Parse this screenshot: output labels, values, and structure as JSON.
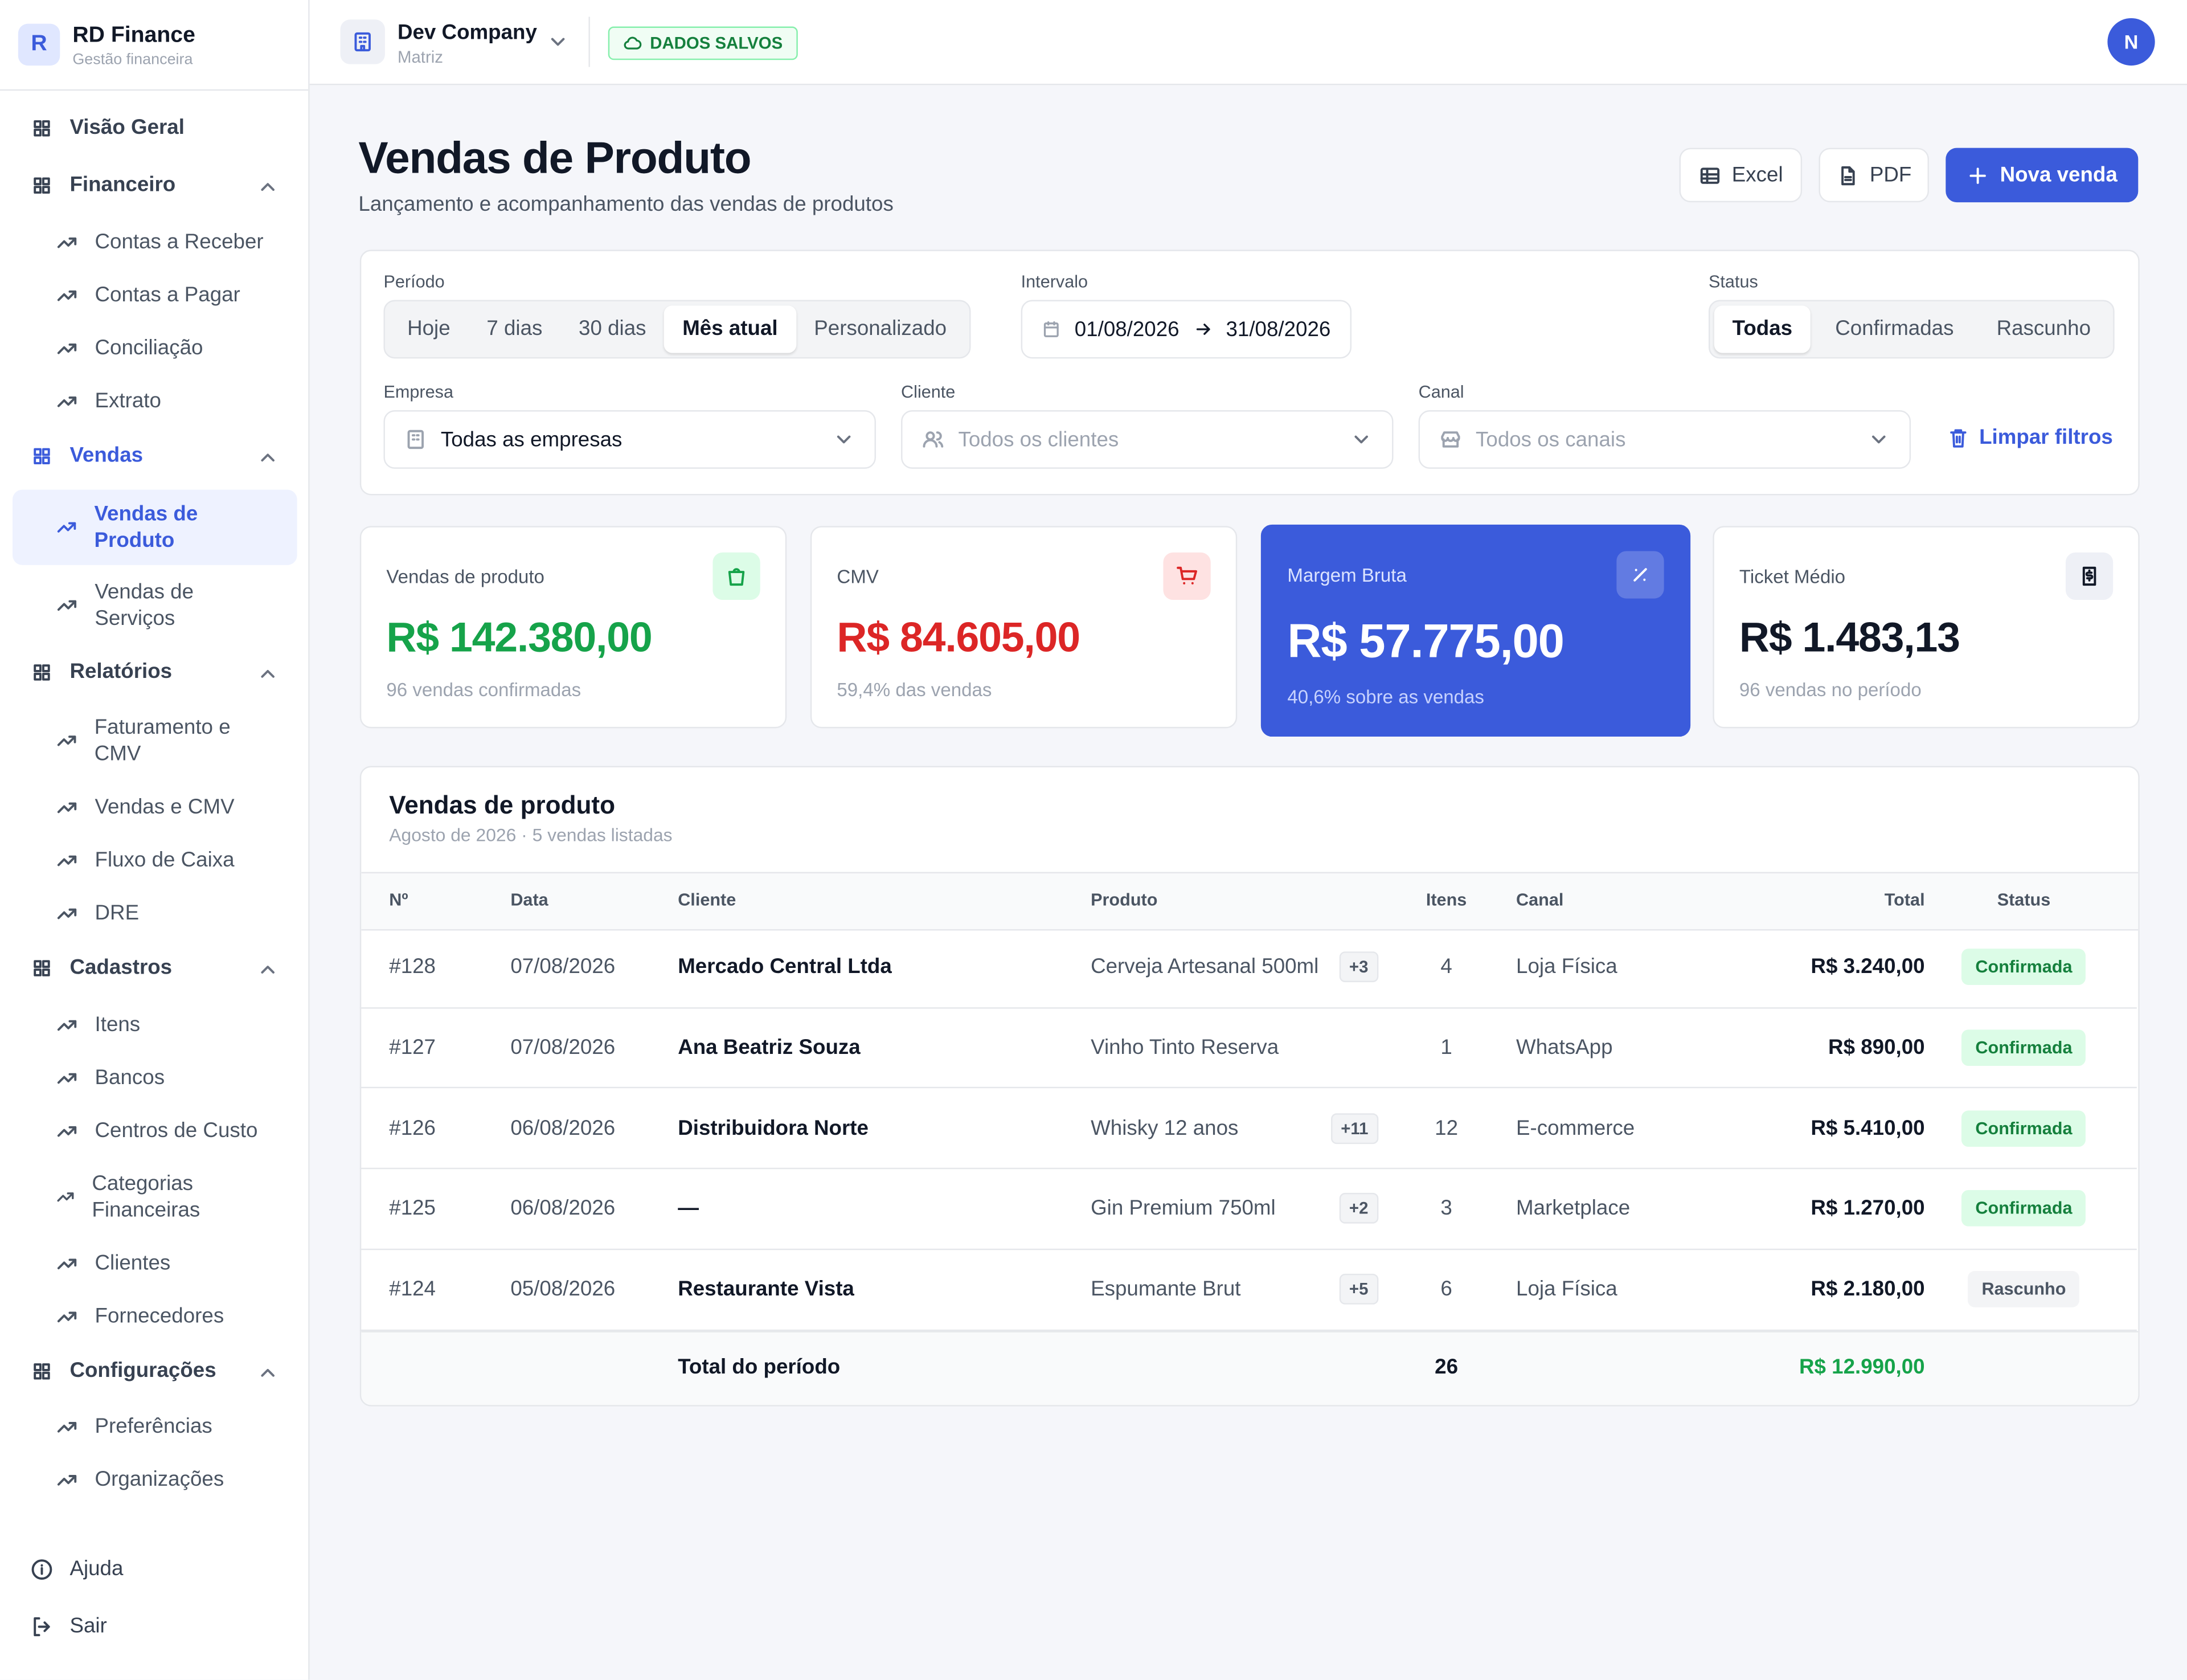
{
  "sidebar": {
    "brand": {
      "initial": "R",
      "name": "RD Finance",
      "subtitle": "Gestão financeira"
    },
    "nav": [
      {
        "label": "Visão Geral"
      },
      {
        "label": "Financeiro",
        "items": [
          "Contas a Receber",
          "Contas a Pagar",
          "Conciliação",
          "Extrato"
        ]
      },
      {
        "label": "Vendas",
        "items": [
          "Vendas de Produto",
          "Vendas de Serviços"
        ]
      },
      {
        "label": "Relatórios",
        "items": [
          "Faturamento e CMV",
          "Vendas e CMV",
          "Fluxo de Caixa",
          "DRE"
        ]
      },
      {
        "label": "Cadastros",
        "items": [
          "Itens",
          "Bancos",
          "Centros de Custo",
          "Categorias Financeiras",
          "Clientes",
          "Fornecedores"
        ]
      },
      {
        "label": "Configurações",
        "items": [
          "Preferências",
          "Organizações"
        ]
      }
    ],
    "footer": [
      "Ajuda",
      "Sair"
    ]
  },
  "topbar": {
    "company": "Dev Company",
    "branch": "Matriz",
    "badge": "DADOS SALVOS",
    "avatar": "N"
  },
  "header": {
    "title": "Vendas de Produto",
    "subtitle": "Lançamento e acompanhamento das vendas de produtos",
    "buttons": [
      "Excel",
      "PDF",
      "Nova venda"
    ]
  },
  "filters": {
    "period": {
      "label": "Período",
      "options": [
        "Hoje",
        "7 dias",
        "30 dias",
        "Mês atual",
        "Personalizado"
      ],
      "selected": 3
    },
    "interval": {
      "label": "Intervalo",
      "start": "01/08/2026",
      "end": "31/08/2026"
    },
    "status": {
      "label": "Status",
      "options": [
        "Todas",
        "Confirmadas",
        "Rascunho"
      ],
      "selected": 0
    },
    "company": {
      "label": "Empresa",
      "value": "Todas as empresas"
    },
    "client": {
      "label": "Cliente",
      "placeholder": "Todos os clientes"
    },
    "channel": {
      "label": "Canal",
      "placeholder": "Todos os canais"
    },
    "clear": "Limpar filtros"
  },
  "kpis": [
    {
      "label": "Vendas de produto",
      "value": "R$ 142.380,00",
      "note": "96 vendas confirmadas",
      "color": "#16a34a"
    },
    {
      "label": "CMV",
      "value": "R$ 84.605,00",
      "note": "59,4% das vendas",
      "color": "#dc2626"
    },
    {
      "label": "Margem Bruta",
      "value": "R$ 57.775,00",
      "note": "40,6% sobre as vendas",
      "color": "#ffffff",
      "highlight": true
    },
    {
      "label": "Ticket Médio",
      "value": "R$ 1.483,13",
      "note": "96 vendas no período",
      "color": "#111827"
    }
  ],
  "table": {
    "title": "Vendas de produto",
    "subtitle": "Agosto de 2026 · 5 vendas listadas",
    "columns": [
      "Nº",
      "Data",
      "Cliente",
      "Produto",
      "Itens",
      "Canal",
      "Total",
      "Status"
    ],
    "rows": [
      {
        "id": "#128",
        "date": "07/08/2026",
        "client": "Mercado Central Ltda",
        "product": "Cerveja Artesanal 500ml",
        "extra": "+3",
        "items": "4",
        "channel": "Loja Física",
        "total": "R$ 3.240,00",
        "status": "Confirmada",
        "status_color": "green"
      },
      {
        "id": "#127",
        "date": "07/08/2026",
        "client": "Ana Beatriz Souza",
        "product": "Vinho Tinto Reserva",
        "items": "1",
        "channel": "WhatsApp",
        "total": "R$ 890,00",
        "status": "Confirmada",
        "status_color": "green"
      },
      {
        "id": "#126",
        "date": "06/08/2026",
        "client": "Distribuidora Norte",
        "product": "Whisky 12 anos",
        "extra": "+11",
        "items": "12",
        "channel": "E-commerce",
        "total": "R$ 5.410,00",
        "status": "Confirmada",
        "status_color": "green"
      },
      {
        "id": "#125",
        "date": "06/08/2026",
        "client": "—",
        "product": "Gin Premium 750ml",
        "extra": "+2",
        "items": "3",
        "channel": "Marketplace",
        "total": "R$ 1.270,00",
        "status": "Confirmada",
        "status_color": "green"
      },
      {
        "id": "#124",
        "date": "05/08/2026",
        "client": "Restaurante Vista",
        "product": "Espumante Brut",
        "extra": "+5",
        "items": "6",
        "channel": "Loja Física",
        "total": "R$ 2.180,00",
        "status": "Rascunho",
        "status_color": "gray"
      }
    ],
    "total_row": {
      "label": "Total do período",
      "items": "26",
      "total": "R$ 12.990,00"
    }
  }
}
